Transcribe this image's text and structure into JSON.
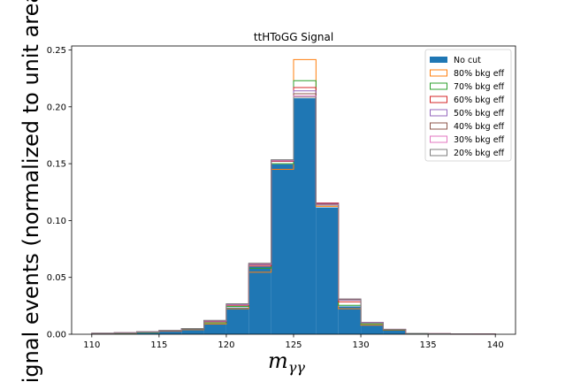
{
  "chart_data": {
    "type": "histogram",
    "title": "ttHToGG Signal",
    "xlabel": "m",
    "xlabel_sub": "γγ",
    "ylabel": "Signal events (normalized to unit area)",
    "xlim": [
      108.5,
      141.5
    ],
    "ylim": [
      0,
      0.2535
    ],
    "xticks": [
      110,
      115,
      120,
      125,
      130,
      135,
      140
    ],
    "xtick_labels": [
      "110",
      "115",
      "120",
      "125",
      "130",
      "135",
      "140"
    ],
    "yticks": [
      0.0,
      0.05,
      0.1,
      0.15,
      0.2,
      0.25
    ],
    "ytick_labels": [
      "0.00",
      "0.05",
      "0.10",
      "0.15",
      "0.20",
      "0.25"
    ],
    "bin_edges": [
      110,
      111.667,
      113.333,
      115,
      116.667,
      118.333,
      120,
      121.667,
      123.333,
      125,
      126.667,
      128.333,
      130,
      131.667,
      133.333,
      135,
      136.667,
      138.333,
      140
    ],
    "legend_position": "upper right",
    "series": [
      {
        "name": "No cut",
        "style": "filled",
        "color": "#1f77b4",
        "values": [
          0.0008,
          0.0012,
          0.0018,
          0.0028,
          0.0042,
          0.0095,
          0.0235,
          0.0595,
          0.1495,
          0.2075,
          0.1115,
          0.0245,
          0.0085,
          0.0038,
          0.0008,
          0.0005,
          0.0003,
          0.0002
        ]
      },
      {
        "name": "80% bkg eff",
        "style": "step",
        "color": "#ff7f0e",
        "values": [
          0.0006,
          0.001,
          0.0016,
          0.0026,
          0.004,
          0.009,
          0.0225,
          0.0545,
          0.145,
          0.2415,
          0.1125,
          0.0225,
          0.008,
          0.0035,
          0.0007,
          0.0004,
          0.0003,
          0.0002
        ]
      },
      {
        "name": "70% bkg eff",
        "style": "step",
        "color": "#2ca02c",
        "values": [
          0.0007,
          0.0011,
          0.0017,
          0.0027,
          0.0043,
          0.01,
          0.0245,
          0.058,
          0.15,
          0.223,
          0.1135,
          0.0255,
          0.009,
          0.0036,
          0.0007,
          0.0004,
          0.0003,
          0.0002
        ]
      },
      {
        "name": "60% bkg eff",
        "style": "step",
        "color": "#d62728",
        "values": [
          0.0008,
          0.0012,
          0.0019,
          0.0029,
          0.0046,
          0.011,
          0.0255,
          0.06,
          0.152,
          0.217,
          0.1155,
          0.0285,
          0.01,
          0.004,
          0.0008,
          0.0005,
          0.0003,
          0.0002
        ]
      },
      {
        "name": "50% bkg eff",
        "style": "step",
        "color": "#9467bd",
        "values": [
          0.0009,
          0.0013,
          0.002,
          0.0031,
          0.0048,
          0.0115,
          0.026,
          0.061,
          0.1525,
          0.214,
          0.115,
          0.03,
          0.0105,
          0.0042,
          0.0008,
          0.0005,
          0.0003,
          0.0002
        ]
      },
      {
        "name": "40% bkg eff",
        "style": "step",
        "color": "#8c564b",
        "values": [
          0.0009,
          0.0014,
          0.0021,
          0.0033,
          0.005,
          0.012,
          0.0265,
          0.0615,
          0.153,
          0.2115,
          0.1145,
          0.0305,
          0.01,
          0.0043,
          0.0008,
          0.0005,
          0.0003,
          0.0002
        ]
      },
      {
        "name": "30% bkg eff",
        "style": "step",
        "color": "#e377c2",
        "values": [
          0.0009,
          0.0014,
          0.0021,
          0.0033,
          0.005,
          0.012,
          0.0265,
          0.062,
          0.153,
          0.2095,
          0.114,
          0.031,
          0.01,
          0.0044,
          0.0008,
          0.0005,
          0.0003,
          0.0002
        ]
      },
      {
        "name": "20% bkg eff",
        "style": "step",
        "color": "#7f7f7f",
        "values": [
          0.0009,
          0.0014,
          0.0022,
          0.0034,
          0.0051,
          0.0122,
          0.0268,
          0.0625,
          0.1535,
          0.2085,
          0.1135,
          0.031,
          0.01,
          0.0044,
          0.0008,
          0.0005,
          0.0003,
          0.0002
        ]
      }
    ]
  }
}
